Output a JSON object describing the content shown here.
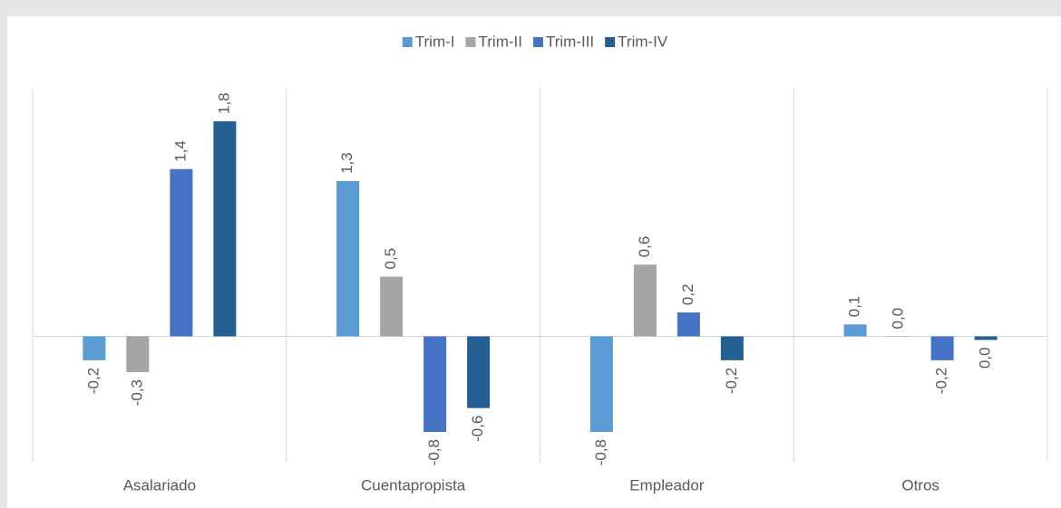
{
  "chart_data": {
    "type": "bar",
    "categories": [
      "Asalariado",
      "Cuentapropista",
      "Empleador",
      "Otros"
    ],
    "series": [
      {
        "name": "Trim-I",
        "color": "#5b9bd5",
        "values": [
          -0.2,
          1.3,
          -0.8,
          0.1
        ],
        "value_labels": [
          "-0,2",
          "1,3",
          "-0,8",
          "0,1"
        ]
      },
      {
        "name": "Trim-II",
        "color": "#a5a5a5",
        "values": [
          -0.3,
          0.5,
          0.6,
          0
        ],
        "value_labels": [
          "-0,3",
          "0,5",
          "0,6",
          "0,0"
        ]
      },
      {
        "name": "Trim-III",
        "color": "#4472c4",
        "values": [
          1.4,
          -0.8,
          0.2,
          -0.2
        ],
        "value_labels": [
          "1,4",
          "-0,8",
          "0,2",
          "-0,2"
        ]
      },
      {
        "name": "Trim-IV",
        "color": "#255e91",
        "values": [
          1.8,
          -0.6,
          -0.2,
          -0.03
        ],
        "value_labels": [
          "1,8",
          "-0,6",
          "-0,2",
          "0,0"
        ]
      }
    ],
    "ylim": [
      -1.05,
      2.08
    ],
    "legend": "top"
  }
}
